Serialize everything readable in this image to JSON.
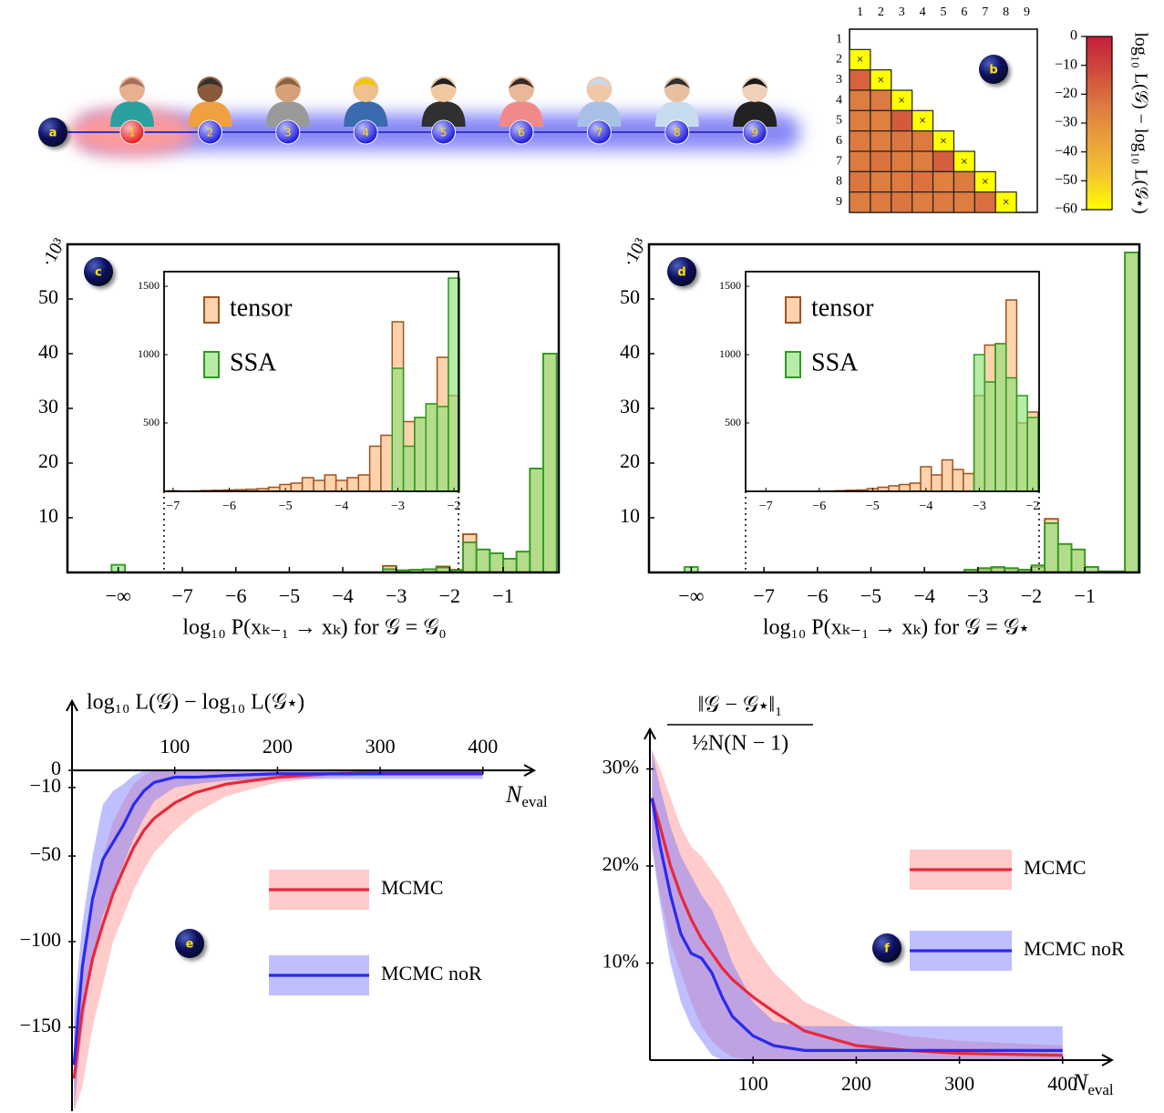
{
  "chain": {
    "label": "a",
    "nodes": [
      "1",
      "2",
      "3",
      "4",
      "5",
      "6",
      "7",
      "8",
      "9"
    ],
    "highlighted": [
      0
    ],
    "node_color": "#2424e0",
    "highlight_color": "#e82424"
  },
  "chart_data": [
    {
      "type": "heatmap",
      "label": "b",
      "columns": [
        "1",
        "2",
        "3",
        "4",
        "5",
        "6",
        "7",
        "8",
        "9"
      ],
      "rows": [
        "1",
        "2",
        "3",
        "4",
        "5",
        "6",
        "7",
        "8",
        "9"
      ],
      "values": [
        [
          null,
          null,
          null,
          null,
          null,
          null,
          null,
          null,
          null
        ],
        [
          -60,
          null,
          null,
          null,
          null,
          null,
          null,
          null,
          null
        ],
        [
          -18,
          -60,
          null,
          null,
          null,
          null,
          null,
          null,
          null
        ],
        [
          -25,
          -24,
          -60,
          null,
          null,
          null,
          null,
          null,
          null
        ],
        [
          -25,
          -26,
          -16,
          -60,
          null,
          null,
          null,
          null,
          null
        ],
        [
          -24,
          -25,
          -23,
          -24,
          -60,
          null,
          null,
          null,
          null
        ],
        [
          -24,
          -22,
          -24,
          -25,
          -17,
          -60,
          null,
          null,
          null
        ],
        [
          -23,
          -25,
          -24,
          -22,
          -26,
          -24,
          -60,
          null,
          null
        ],
        [
          -25,
          -24,
          -23,
          -25,
          -24,
          -25,
          -21,
          -60,
          null
        ]
      ],
      "marker": "×",
      "marked": [
        [
          1,
          0
        ],
        [
          2,
          1
        ],
        [
          3,
          2
        ],
        [
          4,
          3
        ],
        [
          5,
          4
        ],
        [
          6,
          5
        ],
        [
          7,
          6
        ],
        [
          8,
          7
        ]
      ],
      "clim": [
        -60,
        0
      ],
      "colormap": [
        "#ffff00",
        "#f5c430",
        "#eaa03c",
        "#dd7a40",
        "#d04a3c",
        "#c41e3a"
      ],
      "colorbar_ticks": [
        0,
        {
          "value": -10,
          "label": "−10"
        },
        {
          "value": -20,
          "label": "−20"
        },
        {
          "value": -30,
          "label": "−30"
        },
        {
          "value": -40,
          "label": "−40"
        },
        {
          "value": -50,
          "label": "−50"
        },
        {
          "value": -60,
          "label": "−60"
        }
      ],
      "colorbar_label": "log₁₀ L(𝒢) − log₁₀ L(𝒢⋆)"
    },
    {
      "type": "histogram",
      "label": "c",
      "xlabel": "log₁₀ P(xₖ₋₁ → xₖ) for 𝒢 = 𝒢₀",
      "ylabel": "·10³",
      "xlim": [
        -9.15,
        0.04
      ],
      "ylim": [
        0,
        60
      ],
      "xticks": [
        {
          "value": -8.2,
          "label": "−∞"
        },
        {
          "value": -7,
          "label": "−7"
        },
        {
          "value": -6,
          "label": "−6"
        },
        {
          "value": -5,
          "label": "−5"
        },
        {
          "value": -4,
          "label": "−4"
        },
        {
          "value": -3,
          "label": "−3"
        },
        {
          "value": -2,
          "label": "−2"
        },
        {
          "value": -1,
          "label": "−1"
        }
      ],
      "yticks": [
        10,
        20,
        30,
        40,
        50
      ],
      "bins": [
        -3.25,
        -3,
        -2.75,
        -2.5,
        -2.25,
        -2,
        -1.75,
        -1.5,
        -1.25,
        -1,
        -0.75,
        -0.5,
        -0.25,
        0
      ],
      "inset": {
        "xlim": [
          -7.16,
          -1.92
        ],
        "ylim": [
          0,
          1607
        ],
        "xticks": [
          {
            "value": -7,
            "label": "−7"
          },
          {
            "value": -6,
            "label": "−6"
          },
          {
            "value": -5,
            "label": "−5"
          },
          {
            "value": -4,
            "label": "−4"
          },
          {
            "value": -3,
            "label": "−3"
          },
          {
            "value": -2,
            "label": "−2"
          }
        ],
        "yticks": [
          500,
          1000,
          1500
        ],
        "bins": [
          -7.1,
          -6.9,
          -6.7,
          -6.5,
          -6.3,
          -6.1,
          -5.9,
          -5.7,
          -5.5,
          -5.3,
          -5.1,
          -4.9,
          -4.7,
          -4.5,
          -4.3,
          -4.1,
          -3.9,
          -3.7,
          -3.5,
          -3.3,
          -3.1,
          -2.9,
          -2.7,
          -2.5,
          -2.3,
          -2.1,
          -1.9
        ]
      },
      "series": [
        {
          "name": "tensor",
          "color": "#fdd3ae",
          "edgecolor": "#a0521e",
          "alpha": 1,
          "values": [
            1.2,
            0.4,
            0.5,
            0.6,
            1.1,
            0.5,
            7.0,
            4.2,
            3.5,
            2.5,
            3.8,
            19.0,
            40.0
          ],
          "neg_inf": 0,
          "inset_values": [
            4,
            2,
            3,
            6,
            8,
            10,
            12,
            15,
            20,
            30,
            50,
            60,
            100,
            80,
            120,
            80,
            100,
            120,
            330,
            410,
            1240,
            510,
            540,
            640,
            980,
            700
          ]
        },
        {
          "name": "SSA",
          "color": "#8fe07a",
          "edgecolor": "#2e9a1e",
          "alpha": 0.65,
          "values": [
            0.6,
            0.4,
            0.5,
            0.6,
            0.9,
            0.4,
            5.5,
            4.2,
            3.5,
            2.5,
            3.8,
            19.0,
            40.0
          ],
          "neg_inf": 1.4,
          "inset_values": [
            0,
            0,
            0,
            0,
            0,
            0,
            0,
            0,
            0,
            0,
            0,
            0,
            0,
            0,
            0,
            0,
            0,
            0,
            0,
            0,
            900,
            330,
            540,
            640,
            620,
            1560
          ]
        }
      ]
    },
    {
      "type": "histogram",
      "label": "d",
      "xlabel": "log₁₀ P(xₖ₋₁ → xₖ) for 𝒢 = 𝒢⋆",
      "ylabel": "·10³",
      "xlim": [
        -9.15,
        0.02
      ],
      "ylim": [
        0,
        60
      ],
      "xticks": [
        {
          "value": -8.36,
          "label": "−∞"
        },
        {
          "value": -7,
          "label": "−7"
        },
        {
          "value": -6,
          "label": "−6"
        },
        {
          "value": -5,
          "label": "−5"
        },
        {
          "value": -4,
          "label": "−4"
        },
        {
          "value": -3,
          "label": "−3"
        },
        {
          "value": -2,
          "label": "−2"
        },
        {
          "value": -1,
          "label": "−1"
        }
      ],
      "yticks": [
        10,
        20,
        30,
        40,
        50
      ],
      "bins": [
        -3.25,
        -3,
        -2.75,
        -2.5,
        -2.25,
        -2,
        -1.75,
        -1.5,
        -1.25,
        -1,
        -0.75,
        -0.5,
        -0.25,
        0
      ],
      "inset": {
        "xlim": [
          -7.38,
          -1.88
        ],
        "ylim": [
          0,
          1607
        ],
        "xticks": [
          {
            "value": -7,
            "label": "−7"
          },
          {
            "value": -6,
            "label": "−6"
          },
          {
            "value": -5,
            "label": "−5"
          },
          {
            "value": -4,
            "label": "−4"
          },
          {
            "value": -3,
            "label": "−3"
          },
          {
            "value": -2,
            "label": "−2"
          }
        ],
        "yticks": [
          500,
          1000,
          1500
        ],
        "bins": [
          -7.1,
          -6.9,
          -6.7,
          -6.5,
          -6.3,
          -6.1,
          -5.9,
          -5.7,
          -5.5,
          -5.3,
          -5.1,
          -4.9,
          -4.7,
          -4.5,
          -4.3,
          -4.1,
          -3.9,
          -3.7,
          -3.5,
          -3.3,
          -3.1,
          -2.9,
          -2.7,
          -2.5,
          -2.3,
          -2.1,
          -1.9
        ]
      },
      "series": [
        {
          "name": "tensor",
          "color": "#fdd3ae",
          "edgecolor": "#a0521e",
          "alpha": 1,
          "values": [
            0.5,
            0.6,
            0.8,
            0.7,
            0.5,
            1.0,
            9.8,
            5.2,
            4.2,
            1.0,
            0.2,
            0.2,
            58.5
          ],
          "neg_inf": 0,
          "inset_values": [
            0,
            0,
            0,
            0,
            0,
            0,
            2,
            5,
            8,
            10,
            20,
            30,
            40,
            50,
            60,
            180,
            120,
            230,
            160,
            130,
            700,
            1070,
            1080,
            1400,
            500,
            580
          ]
        },
        {
          "name": "SSA",
          "color": "#8fe07a",
          "edgecolor": "#2e9a1e",
          "alpha": 0.65,
          "values": [
            0.5,
            0.8,
            1.0,
            0.8,
            0.5,
            1.3,
            9.0,
            5.2,
            4.2,
            1.0,
            0.2,
            0.2,
            58.5
          ],
          "neg_inf": 1.0,
          "inset_values": [
            0,
            0,
            0,
            0,
            0,
            0,
            0,
            0,
            0,
            0,
            0,
            0,
            0,
            0,
            0,
            0,
            0,
            0,
            0,
            0,
            1000,
            800,
            1080,
            830,
            700,
            540
          ]
        }
      ]
    },
    {
      "type": "line",
      "label": "e",
      "ylabel": "log₁₀ L(𝒢) − log₁₀ L(𝒢⋆)",
      "xlabel": {
        "base": "N",
        "sub": "eval"
      },
      "xlim": [
        0,
        449
      ],
      "ylim": [
        -199,
        40
      ],
      "xticks": [
        100,
        200,
        300,
        400
      ],
      "yticks": [
        0,
        {
          "value": -10,
          "label": "−10"
        },
        {
          "value": -50,
          "label": "−50"
        },
        {
          "value": -100,
          "label": "−100"
        },
        {
          "value": -150,
          "label": "−150"
        }
      ],
      "x": [
        2,
        10,
        20,
        30,
        40,
        50,
        60,
        70,
        80,
        100,
        120,
        150,
        200,
        250,
        300,
        400
      ],
      "series": [
        {
          "name": "MCMC",
          "color": "#e8283c",
          "band_color": "#ff8c8c",
          "values": [
            -180,
            -140,
            -110,
            -90,
            -72,
            -58,
            -45,
            -35,
            -28,
            -19,
            -13,
            -8,
            -4,
            -2,
            -1,
            -1
          ],
          "lower": [
            -199,
            -185,
            -150,
            -125,
            -100,
            -85,
            -70,
            -58,
            -48,
            -35,
            -25,
            -15,
            -7,
            -4,
            -3,
            -3
          ],
          "upper": [
            -150,
            -110,
            -75,
            -50,
            -30,
            -18,
            -8,
            -3,
            0,
            0,
            0,
            0,
            0,
            0,
            0,
            0
          ]
        },
        {
          "name": "MCMC noR",
          "color": "#2a2af0",
          "band_color": "#7070ff",
          "values": [
            -172,
            -115,
            -75,
            -52,
            -42,
            -32,
            -20,
            -12,
            -7,
            -4,
            -4,
            -3,
            -2,
            -2,
            -2,
            -2
          ],
          "lower": [
            -199,
            -150,
            -110,
            -85,
            -70,
            -55,
            -40,
            -28,
            -18,
            -10,
            -8,
            -6,
            -5,
            -5,
            -5,
            -5
          ],
          "upper": [
            -140,
            -90,
            -50,
            -20,
            -12,
            -8,
            -3,
            0,
            0,
            0,
            0,
            0,
            0,
            0,
            0,
            0
          ]
        }
      ]
    },
    {
      "type": "line",
      "label": "f",
      "ylabel": "‖𝒢 − 𝒢⋆‖₁",
      "ylabel_denominator": "½N(N − 1)",
      "xlabel": {
        "base": "N",
        "sub": "eval"
      },
      "xlim": [
        0,
        447
      ],
      "ylim": [
        0,
        34
      ],
      "xticks": [
        100,
        200,
        300,
        400
      ],
      "yticks": [
        {
          "value": 10,
          "label": "10%"
        },
        {
          "value": 20,
          "label": "20%"
        },
        {
          "value": 30,
          "label": "30%"
        }
      ],
      "x": [
        2,
        10,
        20,
        30,
        40,
        50,
        60,
        70,
        80,
        100,
        120,
        150,
        200,
        250,
        300,
        400
      ],
      "series": [
        {
          "name": "MCMC",
          "color": "#e8283c",
          "band_color": "#ff8c8c",
          "values": [
            27,
            24,
            20,
            17,
            14.5,
            12.5,
            11,
            9.5,
            8.3,
            6.5,
            5,
            3,
            1.5,
            1,
            0.7,
            0.5
          ],
          "lower": [
            22,
            17,
            12,
            9,
            6,
            3.5,
            2,
            1,
            0.3,
            0,
            0,
            0,
            0,
            0,
            0,
            0
          ],
          "upper": [
            32,
            30,
            27,
            24,
            22,
            21,
            19.5,
            18,
            16,
            12,
            9,
            6,
            3.5,
            2.5,
            2,
            1.5
          ]
        },
        {
          "name": "MCMC noR",
          "color": "#2a2af0",
          "band_color": "#7070ff",
          "values": [
            27,
            22,
            17,
            13,
            11,
            10.5,
            9,
            6.5,
            4.5,
            2.5,
            1.5,
            1,
            1,
            1,
            1,
            1
          ],
          "lower": [
            22,
            16,
            10,
            6,
            3.5,
            2,
            0.5,
            0,
            0,
            0,
            0,
            0,
            0,
            0,
            0,
            0
          ],
          "upper": [
            32,
            28,
            24,
            21,
            19,
            17,
            15.5,
            13,
            10,
            6,
            4,
            3.5,
            3.5,
            3.5,
            3.5,
            3.5
          ]
        }
      ]
    }
  ]
}
